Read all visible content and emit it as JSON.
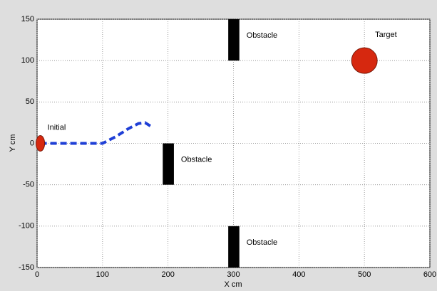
{
  "chart_data": {
    "type": "path",
    "xlabel": "X cm",
    "ylabel": "Y cm",
    "xlim": [
      0,
      600
    ],
    "ylim": [
      -150,
      150
    ],
    "xticks": [
      0,
      100,
      200,
      300,
      400,
      500,
      600
    ],
    "yticks": [
      -150,
      -100,
      -50,
      0,
      50,
      100,
      150
    ],
    "grid": true,
    "series": [
      {
        "color": "#1f3fd6",
        "x": [
          5,
          30,
          60,
          100,
          120,
          140,
          155,
          165,
          175
        ],
        "values": [
          0,
          0,
          0,
          0,
          8,
          18,
          24,
          25,
          20
        ]
      }
    ],
    "obstacles": [
      {
        "label": "Obstacle",
        "x": [
          292,
          309
        ],
        "y": [
          100,
          150
        ],
        "color": "#000000"
      },
      {
        "label": "Obstacle",
        "x": [
          192,
          209
        ],
        "y": [
          -50,
          0
        ],
        "color": "#000000"
      },
      {
        "label": "Obstacle",
        "x": [
          292,
          309
        ],
        "y": [
          -150,
          -100
        ],
        "color": "#000000"
      }
    ],
    "target": {
      "label": "Target",
      "x": 500,
      "y": 100,
      "color": "#d6280f"
    },
    "initial": {
      "label": "Initial",
      "x": 5,
      "y": 0,
      "color": "#d6280f"
    }
  }
}
